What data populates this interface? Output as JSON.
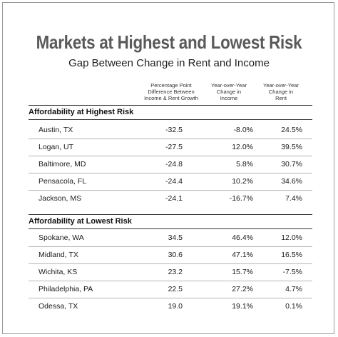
{
  "title": "Markets at Highest and Lowest Risk",
  "subtitle": "Gap Between Change in Rent and Income",
  "columns": [
    {
      "lines": [
        "Percentage Point",
        "Difference Between",
        "Income & Rent Growth"
      ]
    },
    {
      "lines": [
        "Year-over-Year",
        "Change in",
        "Income"
      ]
    },
    {
      "lines": [
        "Year-over-Year",
        "Change in",
        "Rent"
      ]
    }
  ],
  "sections": [
    {
      "title": "Affordability at Highest Risk",
      "rows": [
        {
          "market": "Austin, TX",
          "difference": "-32.5",
          "income": "-8.0%",
          "rent": "24.5%"
        },
        {
          "market": "Logan, UT",
          "difference": "-27.5",
          "income": "12.0%",
          "rent": "39.5%"
        },
        {
          "market": "Baltimore, MD",
          "difference": "-24.8",
          "income": "5.8%",
          "rent": "30.7%"
        },
        {
          "market": "Pensacola, FL",
          "difference": "-24.4",
          "income": "10.2%",
          "rent": "34.6%"
        },
        {
          "market": "Jackson, MS",
          "difference": "-24.1",
          "income": "-16.7%",
          "rent": "7.4%"
        }
      ]
    },
    {
      "title": "Affordability at Lowest Risk",
      "rows": [
        {
          "market": "Spokane, WA",
          "difference": "34.5",
          "income": "46.4%",
          "rent": "12.0%"
        },
        {
          "market": "Midland, TX",
          "difference": "30.6",
          "income": "47.1%",
          "rent": "16.5%"
        },
        {
          "market": "Wichita, KS",
          "difference": "23.2",
          "income": "15.7%",
          "rent": "-7.5%"
        },
        {
          "market": "Philadelphia, PA",
          "difference": "22.5",
          "income": "27.2%",
          "rent": "4.7%"
        },
        {
          "market": "Odessa, TX",
          "difference": "19.0",
          "income": "19.1%",
          "rent": "0.1%"
        }
      ]
    }
  ],
  "colors": {
    "title": "#58595b",
    "rule": "#333333",
    "divider": "#b5b5b5"
  }
}
